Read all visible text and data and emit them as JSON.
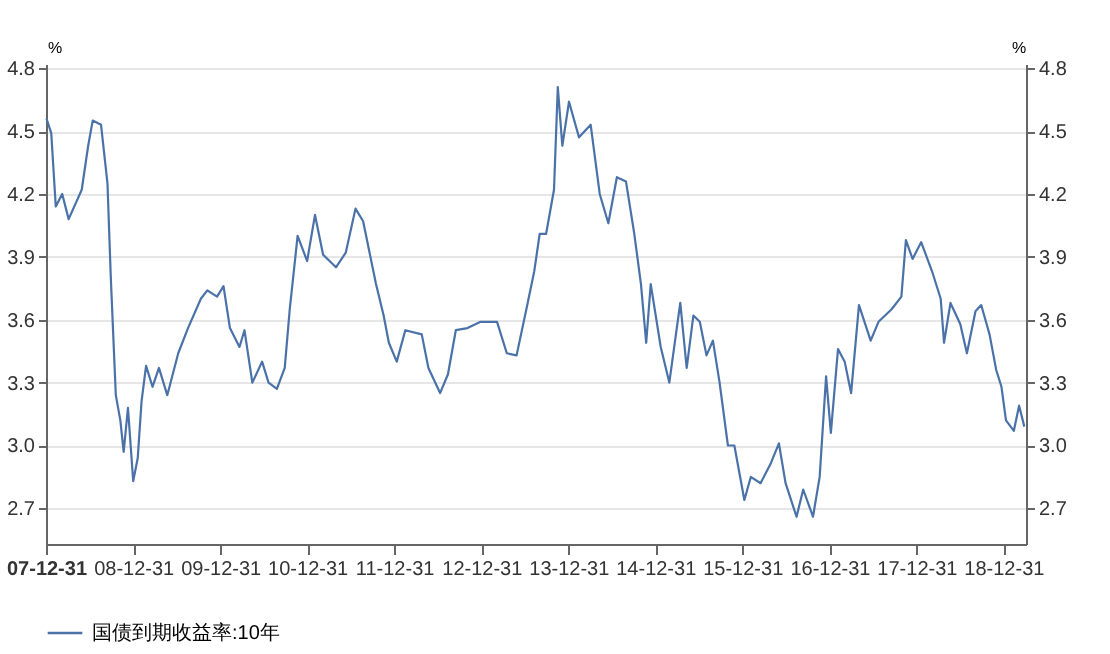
{
  "chart_data": {
    "type": "line",
    "ylabel": "%",
    "y2label": "%",
    "x": [
      "2008-01-02",
      "2008-01-22",
      "2008-02-10",
      "2008-03-08",
      "2008-04-04",
      "2008-05-29",
      "2008-06-25",
      "2008-07-14",
      "2008-08-18",
      "2008-09-14",
      "2008-09-28",
      "2008-10-19",
      "2008-11-07",
      "2008-11-21",
      "2008-12-09",
      "2008-12-31",
      "2009-01-19",
      "2009-02-04",
      "2009-02-23",
      "2009-03-22",
      "2009-04-18",
      "2009-05-23",
      "2009-07-08",
      "2009-08-18",
      "2009-10-11",
      "2009-11-07",
      "2009-12-18",
      "2010-01-14",
      "2010-02-10",
      "2010-03-22",
      "2010-04-12",
      "2010-05-15",
      "2010-06-25",
      "2010-07-22",
      "2010-08-26",
      "2010-09-28",
      "2010-10-19",
      "2010-11-21",
      "2010-12-31",
      "2011-02-02",
      "2011-03-08",
      "2011-05-01",
      "2011-06-11",
      "2011-07-22",
      "2011-08-23",
      "2011-10-16",
      "2011-11-17",
      "2011-12-09",
      "2012-01-11",
      "2012-02-16",
      "2012-04-25",
      "2012-05-23",
      "2012-07-11",
      "2012-08-13",
      "2012-09-15",
      "2012-11-03",
      "2012-12-28",
      "2013-03-07",
      "2013-04-17",
      "2013-05-28",
      "2013-07-08",
      "2013-08-10",
      "2013-09-02",
      "2013-09-29",
      "2013-11-01",
      "2013-11-17",
      "2013-12-06",
      "2014-01-03",
      "2014-02-14",
      "2014-04-04",
      "2014-05-12",
      "2014-06-17",
      "2014-07-23",
      "2014-08-30",
      "2014-10-04",
      "2014-11-01",
      "2014-11-23",
      "2014-12-12",
      "2015-01-23",
      "2015-02-28",
      "2015-04-15",
      "2015-05-12",
      "2015-06-09",
      "2015-07-06",
      "2015-08-03",
      "2015-08-30",
      "2015-09-27",
      "2015-11-01",
      "2015-11-28",
      "2016-01-09",
      "2016-02-05",
      "2016-03-17",
      "2016-04-27",
      "2016-06-02",
      "2016-06-30",
      "2016-08-15",
      "2016-09-12",
      "2016-10-23",
      "2016-11-20",
      "2016-12-17",
      "2017-01-06",
      "2017-02-05",
      "2017-03-05",
      "2017-04-01",
      "2017-05-04",
      "2017-06-22",
      "2017-07-25",
      "2017-09-18",
      "2017-10-29",
      "2017-11-17",
      "2017-12-15",
      "2018-01-20",
      "2018-03-07",
      "2018-04-12",
      "2018-04-26",
      "2018-05-23",
      "2018-07-03",
      "2018-07-31",
      "2018-09-05",
      "2018-09-29",
      "2018-11-03",
      "2018-12-01",
      "2018-12-23",
      "2019-01-11",
      "2019-02-13",
      "2019-03-07",
      "2019-03-29"
    ],
    "series": [
      {
        "name": "国债到期收益率:10年",
        "color": "#4a72a8",
        "values": [
          4.56,
          4.49,
          4.14,
          4.2,
          4.08,
          4.22,
          4.43,
          4.55,
          4.53,
          4.25,
          3.8,
          3.24,
          3.12,
          2.97,
          3.18,
          2.83,
          2.94,
          3.21,
          3.38,
          3.28,
          3.37,
          3.24,
          3.44,
          3.56,
          3.7,
          3.74,
          3.71,
          3.76,
          3.56,
          3.47,
          3.55,
          3.3,
          3.4,
          3.3,
          3.27,
          3.37,
          3.65,
          4.0,
          3.88,
          4.1,
          3.91,
          3.85,
          3.92,
          4.13,
          4.07,
          3.77,
          3.62,
          3.49,
          3.4,
          3.55,
          3.53,
          3.37,
          3.25,
          3.34,
          3.55,
          3.56,
          3.59,
          3.59,
          3.44,
          3.43,
          3.65,
          3.83,
          4.01,
          4.01,
          4.22,
          4.71,
          4.43,
          4.64,
          4.47,
          4.53,
          4.2,
          4.06,
          4.28,
          4.26,
          4.01,
          3.77,
          3.49,
          3.77,
          3.47,
          3.3,
          3.68,
          3.37,
          3.62,
          3.59,
          3.43,
          3.5,
          3.3,
          3.0,
          3.0,
          2.74,
          2.85,
          2.82,
          2.91,
          3.01,
          2.82,
          2.66,
          2.79,
          2.66,
          2.85,
          3.33,
          3.06,
          3.46,
          3.4,
          3.25,
          3.67,
          3.5,
          3.59,
          3.65,
          3.71,
          3.98,
          3.89,
          3.97,
          3.83,
          3.7,
          3.49,
          3.68,
          3.58,
          3.44,
          3.64,
          3.67,
          3.53,
          3.36,
          3.28,
          3.12,
          3.07,
          3.19,
          3.09
        ]
      }
    ],
    "xlim": [
      "2007-12-31",
      "2019-04-05"
    ],
    "xticks": [
      {
        "value": "2007-12-31",
        "label": "07-12-31"
      },
      {
        "value": "2008-12-31",
        "label": "08-12-31"
      },
      {
        "value": "2009-12-31",
        "label": "09-12-31"
      },
      {
        "value": "2010-12-31",
        "label": "10-12-31"
      },
      {
        "value": "2011-12-31",
        "label": "11-12-31"
      },
      {
        "value": "2012-12-31",
        "label": "12-12-31"
      },
      {
        "value": "2013-12-31",
        "label": "13-12-31"
      },
      {
        "value": "2014-12-31",
        "label": "14-12-31"
      },
      {
        "value": "2015-12-31",
        "label": "15-12-31"
      },
      {
        "value": "2016-12-31",
        "label": "16-12-31"
      },
      {
        "value": "2017-12-31",
        "label": "17-12-31"
      },
      {
        "value": "2018-12-31",
        "label": "18-12-31"
      }
    ],
    "ylim": [
      2.53,
      4.82
    ],
    "yticks": [
      2.7,
      {
        "value": 3,
        "label": "3.0"
      },
      3.3,
      3.6,
      3.9,
      4.2,
      4.5,
      4.8
    ],
    "y2lim": [
      2.53,
      4.82
    ],
    "y2ticks": [
      2.7,
      {
        "value": 3,
        "label": "3.0"
      },
      3.3,
      3.6,
      3.9,
      4.2,
      4.5,
      4.8
    ],
    "grid": "y",
    "legend": "bottom",
    "line_style": "solid"
  }
}
